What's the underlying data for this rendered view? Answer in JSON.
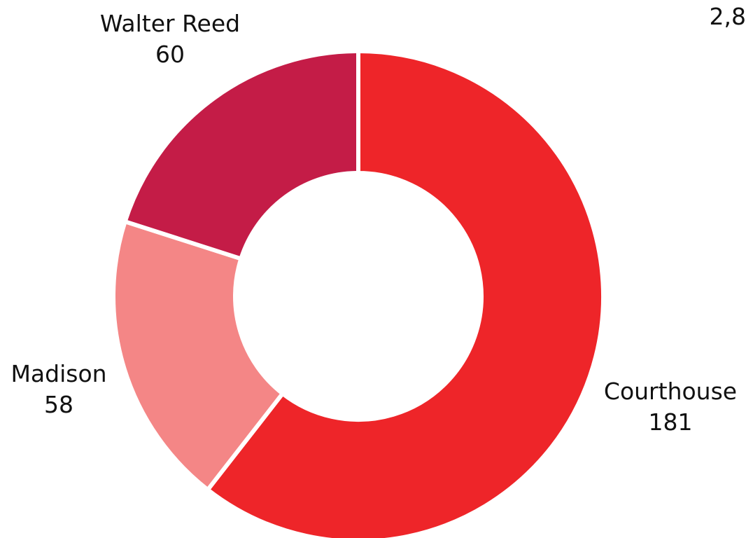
{
  "corner_text": "2,8",
  "chart_data": {
    "type": "pie",
    "variant": "donut",
    "title": "",
    "categories": [
      "Courthouse",
      "Madison",
      "Walter Reed"
    ],
    "values": [
      181,
      58,
      60
    ],
    "colors": [
      "#ee2529",
      "#f48686",
      "#c41c47"
    ],
    "start": "12 o'clock",
    "direction": "clockwise",
    "legend": "none",
    "data_labels": [
      {
        "name": "Courthouse",
        "value": "181"
      },
      {
        "name": "Madison",
        "value": "58"
      },
      {
        "name": "Walter Reed",
        "value": "60"
      }
    ]
  }
}
